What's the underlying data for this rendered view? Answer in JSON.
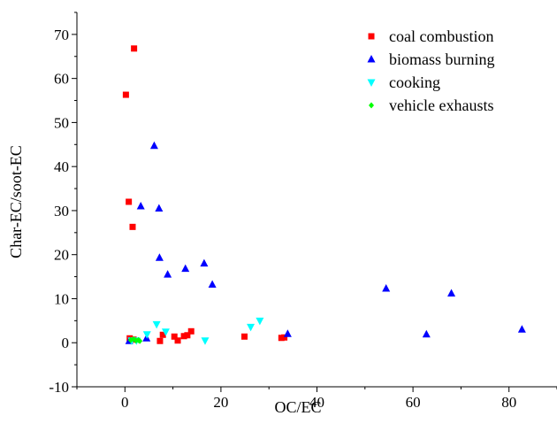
{
  "chart_data": {
    "type": "scatter",
    "xlabel": "OC/EC",
    "ylabel": "Char-EC/soot-EC",
    "xlim": [
      -10,
      90
    ],
    "ylim": [
      -10,
      75
    ],
    "x_ticks": [
      0,
      20,
      40,
      60,
      80
    ],
    "y_ticks": [
      -10,
      0,
      10,
      20,
      30,
      40,
      50,
      60,
      70
    ],
    "grid": false,
    "legend_position": "top-right",
    "series": [
      {
        "name": "coal combustion",
        "marker": "square",
        "color": "#ff0000",
        "points": [
          [
            0.2,
            56.3
          ],
          [
            1.9,
            66.8
          ],
          [
            0.8,
            32.0
          ],
          [
            1.6,
            26.3
          ],
          [
            1.0,
            1.0
          ],
          [
            1.8,
            0.7
          ],
          [
            7.3,
            0.4
          ],
          [
            7.9,
            1.8
          ],
          [
            10.3,
            1.4
          ],
          [
            11.0,
            0.5
          ],
          [
            12.3,
            1.5
          ],
          [
            13.0,
            1.7
          ],
          [
            13.8,
            2.6
          ],
          [
            24.9,
            1.4
          ],
          [
            32.6,
            1.1
          ],
          [
            33.2,
            1.2
          ]
        ]
      },
      {
        "name": "biomass burning",
        "marker": "triangle-up",
        "color": "#0000ff",
        "points": [
          [
            0.9,
            0.4
          ],
          [
            3.3,
            31.0
          ],
          [
            4.5,
            1.0
          ],
          [
            6.1,
            44.7
          ],
          [
            7.1,
            30.5
          ],
          [
            7.2,
            19.3
          ],
          [
            8.9,
            15.5
          ],
          [
            12.6,
            16.8
          ],
          [
            16.5,
            18.0
          ],
          [
            18.2,
            13.2
          ],
          [
            33.9,
            2.0
          ],
          [
            54.4,
            12.3
          ],
          [
            62.8,
            1.9
          ],
          [
            68.0,
            11.2
          ],
          [
            82.7,
            3.0
          ]
        ]
      },
      {
        "name": "cooking",
        "marker": "triangle-down",
        "color": "#00ffff",
        "points": [
          [
            1.4,
            0.5
          ],
          [
            2.4,
            0.5
          ],
          [
            4.6,
            1.9
          ],
          [
            6.6,
            4.2
          ],
          [
            8.5,
            2.5
          ],
          [
            16.7,
            0.5
          ],
          [
            26.2,
            3.6
          ],
          [
            28.1,
            5.0
          ]
        ]
      },
      {
        "name": "vehicle exhausts",
        "marker": "diamond",
        "color": "#00ff00",
        "points": [
          [
            1.2,
            0.6
          ],
          [
            1.8,
            0.8
          ],
          [
            2.3,
            0.5
          ],
          [
            2.8,
            0.6
          ],
          [
            3.1,
            0.4
          ]
        ]
      }
    ]
  }
}
